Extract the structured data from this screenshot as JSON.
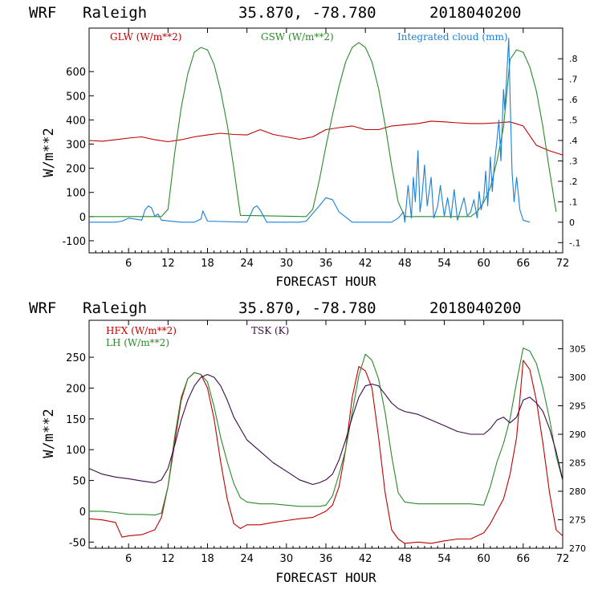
{
  "colors": {
    "red": "#c00000",
    "green": "#2a8a2a",
    "blue": "#1a7fd6",
    "purple": "#3c0a4a",
    "black": "#000000"
  },
  "chart_data": [
    {
      "type": "line",
      "header": {
        "model": "WRF",
        "location": "Raleigh",
        "coords": "35.870, -78.780",
        "init": "2018040200"
      },
      "ylabel": "W/m**2",
      "xlabel": "FORECAST HOUR",
      "xlim": [
        0,
        72
      ],
      "ylim": [
        -150,
        780
      ],
      "xticks": [
        6,
        12,
        18,
        24,
        30,
        36,
        42,
        48,
        54,
        60,
        66,
        72
      ],
      "yticks": [
        -100,
        0,
        100,
        200,
        300,
        400,
        500,
        600
      ],
      "y2lim": [
        -0.15,
        0.95
      ],
      "y2ticks": [
        -0.1,
        0,
        0.1,
        0.2,
        0.3,
        0.4,
        0.5,
        0.6,
        0.7,
        0.8
      ],
      "y2ticklabels": [
        "-.1",
        "0",
        ".1",
        ".2",
        ".3",
        ".4",
        ".5",
        ".6",
        ".7",
        ".8"
      ],
      "series": [
        {
          "name": "GLW (W/m**2)",
          "color": "red",
          "axis": "left",
          "x": [
            0,
            2,
            4,
            6,
            8,
            10,
            12,
            14,
            16,
            18,
            20,
            22,
            24,
            26,
            28,
            30,
            32,
            34,
            36,
            38,
            40,
            42,
            44,
            46,
            48,
            50,
            52,
            54,
            56,
            58,
            60,
            62,
            64,
            66,
            68,
            70,
            72
          ],
          "y": [
            315,
            312,
            318,
            325,
            330,
            318,
            310,
            318,
            330,
            338,
            345,
            340,
            338,
            360,
            340,
            330,
            320,
            330,
            360,
            368,
            375,
            360,
            360,
            375,
            380,
            385,
            395,
            392,
            388,
            385,
            385,
            388,
            392,
            375,
            295,
            272,
            255
          ]
        },
        {
          "name": "GSW (W/m**2)",
          "color": "green",
          "axis": "left",
          "x": [
            0,
            11,
            12,
            13,
            14,
            15,
            16,
            17,
            18,
            19,
            20,
            21,
            22,
            23,
            33,
            34,
            35,
            36,
            37,
            38,
            39,
            40,
            41,
            42,
            43,
            44,
            45,
            46,
            47,
            48,
            58,
            59,
            60,
            61,
            62,
            63,
            64,
            65,
            66,
            67,
            68,
            69,
            70,
            71
          ],
          "y": [
            0,
            0,
            30,
            260,
            450,
            590,
            680,
            700,
            690,
            630,
            520,
            380,
            200,
            5,
            0,
            30,
            150,
            290,
            420,
            540,
            640,
            700,
            720,
            700,
            640,
            530,
            380,
            210,
            60,
            0,
            0,
            20,
            60,
            120,
            230,
            370,
            650,
            690,
            680,
            620,
            520,
            370,
            190,
            20
          ]
        },
        {
          "name": "Integrated cloud (mm)",
          "color": "blue",
          "axis": "right",
          "x": [
            0,
            4,
            5,
            6,
            8,
            8.5,
            9,
            9.5,
            10,
            10.5,
            11,
            14,
            16,
            17,
            17.3,
            18,
            24,
            25,
            25.5,
            26,
            27,
            32,
            33,
            35,
            36,
            37,
            38,
            40,
            46,
            47,
            47.8,
            48,
            48.5,
            49,
            49.3,
            49.6,
            50,
            50.3,
            50.6,
            51,
            51.4,
            52,
            52.4,
            53,
            53.4,
            54,
            54.5,
            55,
            55.5,
            56,
            57,
            57.5,
            58,
            58.5,
            59,
            59.3,
            59.6,
            60,
            60.3,
            60.6,
            61,
            61.3,
            61.6,
            62,
            62.3,
            62.6,
            63,
            63.2,
            63.5,
            63.8,
            64,
            64.3,
            64.6,
            65,
            65.5,
            66,
            67
          ],
          "y": [
            0,
            0,
            0.005,
            0.02,
            0.01,
            0.06,
            0.08,
            0.07,
            0.03,
            0.04,
            0.01,
            0,
            0,
            0.015,
            0.055,
            0.005,
            0,
            0.07,
            0.08,
            0.06,
            0,
            0,
            0.005,
            0.08,
            0.12,
            0.11,
            0.05,
            0,
            0,
            0.02,
            0.05,
            0,
            0.18,
            0.02,
            0.22,
            0.1,
            0.35,
            0.05,
            0.12,
            0.28,
            0.08,
            0.22,
            0.02,
            0.08,
            0.18,
            0.03,
            0.12,
            0.02,
            0.16,
            0.01,
            0.12,
            0.03,
            0.05,
            0.11,
            0.02,
            0.15,
            0.06,
            0.12,
            0.25,
            0.08,
            0.32,
            0.15,
            0.28,
            0.4,
            0.5,
            0.3,
            0.65,
            0.55,
            0.72,
            0.9,
            0.62,
            0.25,
            0.1,
            0.22,
            0.06,
            0.01,
            0
          ]
        }
      ]
    },
    {
      "type": "line",
      "header": {
        "model": "WRF",
        "location": "Raleigh",
        "coords": "35.870, -78.780",
        "init": "2018040200"
      },
      "ylabel": "W/m**2",
      "xlabel": "FORECAST HOUR",
      "xlim": [
        0,
        72
      ],
      "ylim": [
        -60,
        310
      ],
      "xticks": [
        6,
        12,
        18,
        24,
        30,
        36,
        42,
        48,
        54,
        60,
        66,
        72
      ],
      "yticks": [
        -50,
        0,
        50,
        100,
        150,
        200,
        250
      ],
      "y2lim": [
        270,
        310
      ],
      "y2ticks": [
        270,
        275,
        280,
        285,
        290,
        295,
        300,
        305
      ],
      "series": [
        {
          "name": "HFX (W/m**2)",
          "color": "red",
          "axis": "left",
          "x": [
            0,
            2,
            4,
            5,
            6,
            8,
            10,
            11,
            12,
            13,
            14,
            15,
            16,
            17,
            18,
            19,
            20,
            21,
            22,
            23,
            24,
            26,
            28,
            30,
            32,
            34,
            35,
            36,
            37,
            38,
            39,
            40,
            41,
            42,
            43,
            44,
            45,
            46,
            47,
            48,
            50,
            52,
            54,
            56,
            58,
            60,
            61,
            62,
            63,
            64,
            65,
            66,
            67,
            68,
            69,
            70,
            71,
            72
          ],
          "y": [
            -12,
            -14,
            -18,
            -42,
            -40,
            -38,
            -30,
            -10,
            40,
            110,
            180,
            215,
            225,
            222,
            200,
            150,
            80,
            20,
            -20,
            -28,
            -22,
            -22,
            -18,
            -15,
            -12,
            -10,
            -5,
            0,
            10,
            40,
            100,
            185,
            235,
            228,
            200,
            120,
            30,
            -30,
            -45,
            -52,
            -50,
            -52,
            -48,
            -45,
            -45,
            -35,
            -20,
            0,
            20,
            60,
            120,
            245,
            230,
            180,
            110,
            30,
            -30,
            -40
          ]
        },
        {
          "name": "LH (W/m**2)",
          "color": "green",
          "axis": "left",
          "x": [
            0,
            2,
            4,
            6,
            8,
            10,
            11,
            12,
            13,
            14,
            15,
            16,
            17,
            18,
            19,
            20,
            21,
            22,
            23,
            24,
            26,
            28,
            30,
            32,
            34,
            35,
            36,
            37,
            38,
            39,
            40,
            41,
            42,
            43,
            44,
            45,
            46,
            47,
            48,
            50,
            52,
            54,
            56,
            58,
            60,
            61,
            62,
            63,
            64,
            65,
            66,
            67,
            68,
            69,
            70,
            71,
            72
          ],
          "y": [
            0,
            0,
            -2,
            -5,
            -5,
            -6,
            -3,
            40,
            120,
            185,
            215,
            225,
            222,
            210,
            170,
            120,
            80,
            45,
            22,
            15,
            12,
            12,
            10,
            8,
            8,
            8,
            10,
            25,
            60,
            100,
            160,
            220,
            255,
            245,
            215,
            160,
            90,
            30,
            15,
            12,
            12,
            12,
            12,
            12,
            10,
            40,
            80,
            110,
            150,
            210,
            265,
            260,
            240,
            200,
            150,
            90,
            50
          ]
        },
        {
          "name": "TSK (K)",
          "color": "purple",
          "axis": "right",
          "x": [
            0,
            2,
            4,
            6,
            8,
            10,
            11,
            12,
            13,
            14,
            15,
            16,
            17,
            18,
            19,
            20,
            21,
            22,
            23,
            24,
            26,
            28,
            30,
            32,
            34,
            35,
            36,
            37,
            38,
            39,
            40,
            41,
            42,
            43,
            44,
            45,
            46,
            47,
            48,
            50,
            52,
            54,
            56,
            58,
            60,
            61,
            62,
            63,
            64,
            65,
            66,
            67,
            68,
            69,
            70,
            71,
            72
          ],
          "y": [
            284,
            283,
            282.5,
            282.2,
            281.8,
            281.5,
            282,
            284,
            288,
            292.5,
            296,
            298.5,
            300,
            300.5,
            300,
            298.5,
            296,
            293,
            291,
            289,
            287,
            285,
            283.5,
            282,
            281.2,
            281.5,
            282,
            283,
            285.5,
            289,
            293,
            296.5,
            298.5,
            298.8,
            298.5,
            297,
            295.5,
            294.5,
            294,
            293.5,
            292.5,
            291.5,
            290.5,
            290,
            290,
            291,
            292.5,
            293,
            292,
            293,
            296,
            296.5,
            295.5,
            294,
            291,
            287,
            282
          ]
        }
      ]
    }
  ]
}
